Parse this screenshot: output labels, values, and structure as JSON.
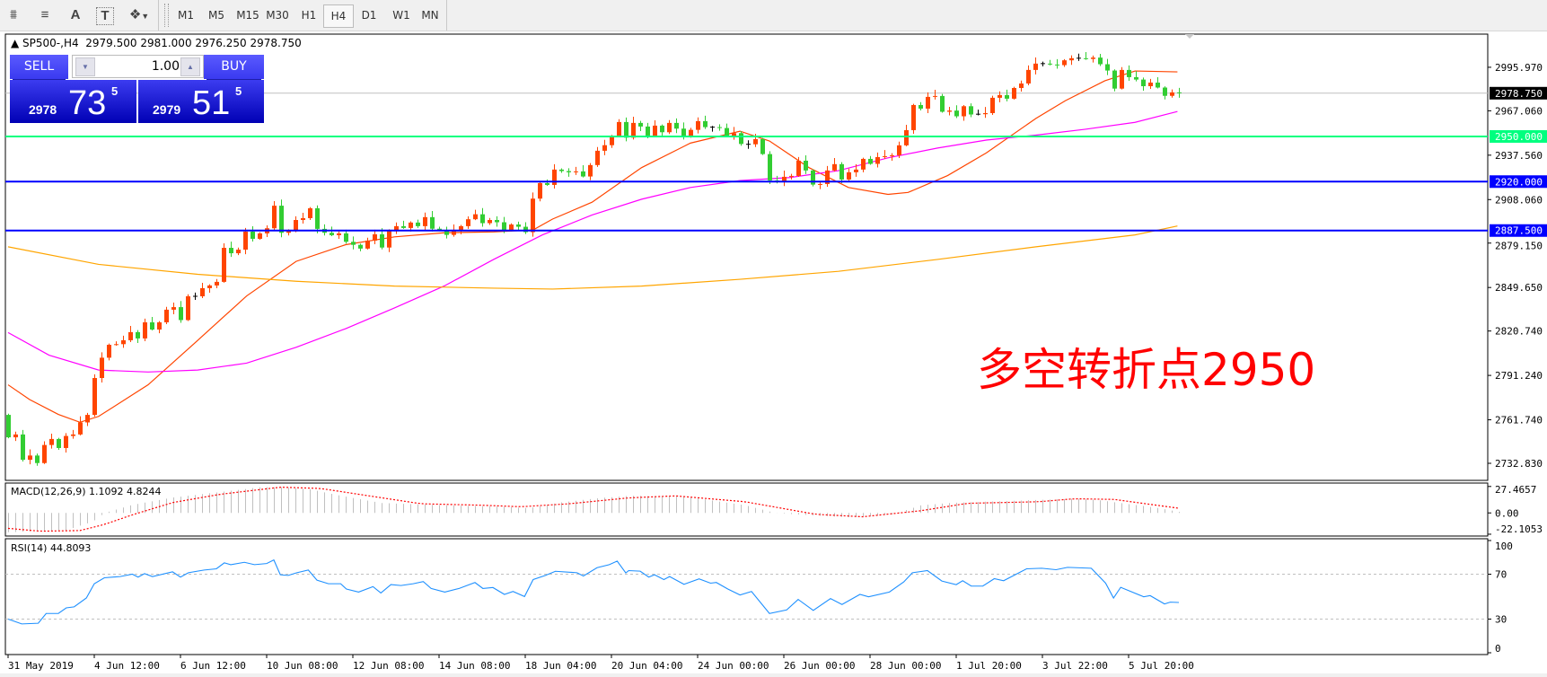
{
  "toolbar": {
    "icons": [
      "expert-icon",
      "fibonacci-icon",
      "text-icon",
      "text-label-icon",
      "arrows-icon"
    ],
    "icon_glyphs": [
      "⩩",
      "≡",
      "A",
      "T",
      "❖"
    ],
    "timeframes": [
      "M1",
      "M5",
      "M15",
      "M30",
      "H1",
      "H4",
      "D1",
      "W1",
      "MN"
    ],
    "selected_timeframe": "H4"
  },
  "chart_header": {
    "symbol": "SP500-,H4",
    "ohlc": "2979.500 2981.000 2976.250 2978.750"
  },
  "one_click": {
    "sell_label": "SELL",
    "buy_label": "BUY",
    "volume": "1.00",
    "sell_price": {
      "prefix": "2978",
      "big": "73",
      "sup": "5"
    },
    "buy_price": {
      "prefix": "2979",
      "big": "51",
      "sup": "5"
    }
  },
  "annotation": {
    "text": "多空转折点2950",
    "color": "#ff0000"
  },
  "colors": {
    "bull": "#ff4500",
    "bear": "#32cd32",
    "doji": "#000000",
    "ma_fast": "#ff4500",
    "ma_mid": "#ff00ff",
    "ma_slow": "#ffa500",
    "level_green": "#00ff7f",
    "level_blue": "#0000ff",
    "bid_line": "#c0c0c0",
    "macd_hist": "#c0c0c0",
    "macd_signal": "#ff0000",
    "rsi": "#1e90ff"
  },
  "chart_data": {
    "type": "candlestick",
    "symbol": "SP500-",
    "timeframe": "H4",
    "ylim": [
      2721.5,
      3018.0
    ],
    "y_ticks": [
      "2995.970",
      "2967.060",
      "2937.560",
      "2908.060",
      "2879.150",
      "2849.650",
      "2820.740",
      "2791.240",
      "2761.740",
      "2732.830"
    ],
    "first_open": 2765,
    "closes": [
      2750.1,
      2752,
      2735.2,
      2738,
      2733,
      2745,
      2749,
      2743,
      2751,
      2752,
      2760,
      2765,
      2789.5,
      2803,
      2811.6,
      2812,
      2814.6,
      2820,
      2815.8,
      2826.5,
      2821.7,
      2826.5,
      2834.9,
      2836.6,
      2828,
      2843.8,
      2843.8,
      2849.2,
      2851,
      2853.4,
      2876,
      2872.4,
      2874.8,
      2886.8,
      2882,
      2885.6,
      2889,
      2904,
      2886,
      2887,
      2894.5,
      2895.7,
      2902.3,
      2888.6,
      2886,
      2884.4,
      2885.6,
      2880,
      2878,
      2875.5,
      2880.8,
      2885,
      2876.2,
      2887,
      2890.4,
      2889.2,
      2892.8,
      2890.4,
      2896.4,
      2888.7,
      2887.6,
      2884.6,
      2888,
      2890.4,
      2895,
      2898.3,
      2892.4,
      2894.5,
      2893,
      2887.6,
      2891.5,
      2890,
      2886.4,
      2908.7,
      2919,
      2917.8,
      2928,
      2927,
      2926.2,
      2926.8,
      2923.4,
      2931,
      2940.5,
      2944.2,
      2950.2,
      2959.6,
      2949.2,
      2959,
      2956.6,
      2950.6,
      2957.2,
      2952.8,
      2959,
      2955.2,
      2949.8,
      2954.4,
      2960.2,
      2956.2,
      2956.2,
      2955.6,
      2950.2,
      2952.2,
      2945,
      2944.8,
      2948.2,
      2938.3,
      2920.8,
      2920,
      2923.2,
      2923.8,
      2933.9,
      2927.4,
      2918,
      2918.4,
      2927.4,
      2931.6,
      2921.4,
      2926.2,
      2928,
      2935.1,
      2931.8,
      2936.3,
      2936.9,
      2937.5,
      2944.1,
      2954.2,
      2970.9,
      2968.5,
      2976.3,
      2976.9,
      2966.4,
      2967.2,
      2963.4,
      2970.1,
      2964.6,
      2964.8,
      2965.5,
      2975.7,
      2977.5,
      2975.1,
      2982.2,
      2985.2,
      2994.2,
      2998.4,
      2998.4,
      2997.8,
      2997.4,
      3000.6,
      3002,
      3002,
      3001.5,
      3002.4,
      2998,
      2993.8,
      2981.8,
      2994.2,
      2989.4,
      2987.8,
      2983.4,
      2985.8,
      2982.5,
      2977,
      2979.3,
      2978.75
    ],
    "moving_averages": [
      {
        "role": "fast",
        "points": [
          [
            0,
            2785
          ],
          [
            3,
            2775.2
          ],
          [
            7,
            2765.3
          ],
          [
            10,
            2760.1
          ],
          [
            12.6,
            2764
          ],
          [
            19.5,
            2785
          ],
          [
            26.4,
            2814.5
          ],
          [
            33.2,
            2844
          ],
          [
            40.1,
            2867
          ],
          [
            47,
            2878.1
          ],
          [
            53.8,
            2883.3
          ],
          [
            60.7,
            2886
          ],
          [
            67.6,
            2886.6
          ],
          [
            73.1,
            2887.9
          ],
          [
            75.8,
            2895.1
          ],
          [
            81.3,
            2906.3
          ],
          [
            88.2,
            2929.3
          ],
          [
            95,
            2945.6
          ],
          [
            101.9,
            2953.5
          ],
          [
            106,
            2947
          ],
          [
            111.5,
            2929.3
          ],
          [
            117,
            2916.1
          ],
          [
            122.5,
            2911.5
          ],
          [
            125.3,
            2912.8
          ],
          [
            130.8,
            2924
          ],
          [
            136.2,
            2939.1
          ],
          [
            143.1,
            2962
          ],
          [
            147.2,
            2973.8
          ],
          [
            152.7,
            2987
          ],
          [
            156.9,
            2993.5
          ],
          [
            162.8,
            2992.9
          ]
        ]
      },
      {
        "role": "mid",
        "points": [
          [
            0,
            2819.7
          ],
          [
            5.7,
            2804.7
          ],
          [
            12.6,
            2794.8
          ],
          [
            19.5,
            2793.5
          ],
          [
            26.4,
            2794.8
          ],
          [
            33.2,
            2799.4
          ],
          [
            40.1,
            2809.9
          ],
          [
            47,
            2822.3
          ],
          [
            53.8,
            2836.1
          ],
          [
            60.7,
            2850.6
          ],
          [
            67.6,
            2868.3
          ],
          [
            74.4,
            2884.6
          ],
          [
            81.3,
            2897.8
          ],
          [
            88.2,
            2908.3
          ],
          [
            95,
            2916.1
          ],
          [
            101.9,
            2920.7
          ],
          [
            108.8,
            2922.7
          ],
          [
            115.6,
            2927.3
          ],
          [
            122.5,
            2935.8
          ],
          [
            129.4,
            2942.3
          ],
          [
            136.2,
            2947.6
          ],
          [
            143.1,
            2950.9
          ],
          [
            150,
            2954.8
          ],
          [
            156.9,
            2959.4
          ],
          [
            162.8,
            2966.6
          ]
        ]
      },
      {
        "role": "slow",
        "points": [
          [
            0,
            2876.7
          ],
          [
            12.6,
            2865
          ],
          [
            26.4,
            2858.4
          ],
          [
            40.1,
            2853.8
          ],
          [
            53.8,
            2850.6
          ],
          [
            67.6,
            2849.2
          ],
          [
            75.8,
            2848.6
          ],
          [
            88.2,
            2850.6
          ],
          [
            101.9,
            2855.1
          ],
          [
            115.6,
            2860.4
          ],
          [
            129.4,
            2868.3
          ],
          [
            143.1,
            2876.7
          ],
          [
            156.9,
            2884.6
          ],
          [
            162.8,
            2890.5
          ]
        ]
      }
    ],
    "levels": [
      {
        "price": 2950.0,
        "label": "2950.000",
        "color": "#00ff7f"
      },
      {
        "price": 2920.0,
        "label": "2920.000",
        "color": "#0000ff"
      },
      {
        "price": 2887.5,
        "label": "2887.500",
        "color": "#0000ff"
      }
    ],
    "bid": {
      "price": 2978.75,
      "label": "2978.750"
    },
    "time_labels": [
      {
        "bar": 0,
        "label": "31 May 2019"
      },
      {
        "bar": 12,
        "label": "4 Jun 12:00"
      },
      {
        "bar": 24,
        "label": "6 Jun 12:00"
      },
      {
        "bar": 36,
        "label": "10 Jun 08:00"
      },
      {
        "bar": 48,
        "label": "12 Jun 08:00"
      },
      {
        "bar": 60,
        "label": "14 Jun 08:00"
      },
      {
        "bar": 72,
        "label": "18 Jun 04:00"
      },
      {
        "bar": 84,
        "label": "20 Jun 04:00"
      },
      {
        "bar": 96,
        "label": "24 Jun 00:00"
      },
      {
        "bar": 108,
        "label": "26 Jun 00:00"
      },
      {
        "bar": 120,
        "label": "28 Jun 00:00"
      },
      {
        "bar": 132,
        "label": "1 Jul 20:00"
      },
      {
        "bar": 144,
        "label": "3 Jul 22:00"
      },
      {
        "bar": 156,
        "label": "5 Jul 20:00"
      }
    ],
    "macd": {
      "label": "MACD(12,26,9) 1.1092 4.8244",
      "ticks": [
        "27.4657",
        "0.00",
        "-22.1053"
      ],
      "tick_values": [
        27.4657,
        0,
        -22.1053
      ],
      "ylim": [
        -24,
        31
      ],
      "main_points": [
        [
          0,
          -20
        ],
        [
          8,
          -18
        ],
        [
          11.75,
          -9
        ],
        [
          13.4,
          0
        ],
        [
          17.25,
          8.3
        ],
        [
          22.9,
          16
        ],
        [
          29.5,
          21.7
        ],
        [
          35.1,
          26.7
        ],
        [
          37.9,
          26.7
        ],
        [
          41.9,
          24.6
        ],
        [
          46.4,
          17.7
        ],
        [
          51.9,
          10.3
        ],
        [
          60.25,
          8
        ],
        [
          68.6,
          6.4
        ],
        [
          72.5,
          5
        ],
        [
          77,
          11
        ],
        [
          82.6,
          15.6
        ],
        [
          86.4,
          17.7
        ],
        [
          88,
          17.7
        ],
        [
          94.5,
          16.6
        ],
        [
          102.6,
          8
        ],
        [
          106.75,
          0
        ],
        [
          110.9,
          -2.1
        ],
        [
          117.4,
          -4.6
        ],
        [
          123.1,
          -1.5
        ],
        [
          127.1,
          8
        ],
        [
          131.25,
          10.4
        ],
        [
          143.5,
          13.5
        ],
        [
          148.4,
          14.7
        ],
        [
          151.6,
          13.5
        ],
        [
          155.6,
          9.5
        ],
        [
          159.75,
          5.5
        ],
        [
          163,
          1.1092
        ]
      ],
      "signal_points": [
        [
          0,
          -16
        ],
        [
          4.5,
          -19
        ],
        [
          10,
          -18.3
        ],
        [
          13.4,
          -12
        ],
        [
          17.25,
          -2.1
        ],
        [
          22.9,
          10.7
        ],
        [
          29.5,
          19.3
        ],
        [
          37.9,
          26.7
        ],
        [
          43.5,
          25.4
        ],
        [
          50.25,
          17.7
        ],
        [
          57.5,
          9.5
        ],
        [
          65.9,
          8
        ],
        [
          71.4,
          6.4
        ],
        [
          78.1,
          9.5
        ],
        [
          86.4,
          15.6
        ],
        [
          92.9,
          17.7
        ],
        [
          102.6,
          11.6
        ],
        [
          112.5,
          -1.5
        ],
        [
          119,
          -4
        ],
        [
          127.1,
          2.3
        ],
        [
          133.6,
          10
        ],
        [
          143.5,
          11.6
        ],
        [
          148.4,
          14.7
        ],
        [
          154,
          14
        ],
        [
          163,
          4.8244
        ]
      ]
    },
    "rsi": {
      "label": "RSI(14) 44.8093",
      "ticks": [
        "100",
        "70",
        "30",
        "0"
      ],
      "tick_values": [
        100,
        70,
        30,
        0
      ],
      "levels": [
        70,
        30
      ],
      "ylim": [
        0,
        100
      ],
      "points": [
        [
          0,
          30
        ],
        [
          1.9,
          25.7
        ],
        [
          4.2,
          26.3
        ],
        [
          5.3,
          35
        ],
        [
          7,
          35
        ],
        [
          8.1,
          40
        ],
        [
          9.2,
          40.9
        ],
        [
          10.9,
          48.8
        ],
        [
          12,
          61.5
        ],
        [
          13.4,
          66.8
        ],
        [
          15.6,
          67.9
        ],
        [
          17.3,
          70
        ],
        [
          18.1,
          67.4
        ],
        [
          19,
          70.5
        ],
        [
          20.1,
          67.9
        ],
        [
          22.9,
          72.1
        ],
        [
          24,
          67.4
        ],
        [
          25.1,
          71.3
        ],
        [
          27.3,
          73.7
        ],
        [
          29,
          74.8
        ],
        [
          30.1,
          80.1
        ],
        [
          31,
          78.5
        ],
        [
          32.9,
          80.6
        ],
        [
          34.3,
          78.5
        ],
        [
          36,
          79.5
        ],
        [
          37,
          82.7
        ],
        [
          37.9,
          69.5
        ],
        [
          39,
          68.9
        ],
        [
          40.2,
          71.3
        ],
        [
          41.8,
          73.7
        ],
        [
          43,
          64.7
        ],
        [
          44.6,
          61.5
        ],
        [
          46.3,
          61.5
        ],
        [
          47.1,
          56.8
        ],
        [
          48.8,
          54.1
        ],
        [
          50.8,
          58.9
        ],
        [
          51.9,
          53.3
        ],
        [
          53.3,
          60.7
        ],
        [
          54.7,
          59.9
        ],
        [
          56.4,
          61.5
        ],
        [
          57.8,
          63.4
        ],
        [
          58.9,
          57.3
        ],
        [
          60.8,
          54.1
        ],
        [
          62.8,
          57.3
        ],
        [
          65,
          62.6
        ],
        [
          66.1,
          57.3
        ],
        [
          67.5,
          58.1
        ],
        [
          69.1,
          52
        ],
        [
          70.3,
          54.6
        ],
        [
          71.9,
          50.1
        ],
        [
          73.1,
          65.2
        ],
        [
          74.8,
          68.9
        ],
        [
          76.2,
          72.6
        ],
        [
          79.2,
          71.3
        ],
        [
          80.1,
          68.4
        ],
        [
          82,
          75.8
        ],
        [
          83.7,
          78.5
        ],
        [
          84.8,
          81.7
        ],
        [
          86,
          71.1
        ],
        [
          86.4,
          73.2
        ],
        [
          88,
          72.7
        ],
        [
          89.2,
          67.4
        ],
        [
          90,
          69.5
        ],
        [
          91.3,
          65.2
        ],
        [
          92.1,
          67.9
        ],
        [
          94.1,
          61
        ],
        [
          96.2,
          65.8
        ],
        [
          97.8,
          62
        ],
        [
          98.6,
          62.6
        ],
        [
          100.2,
          56.8
        ],
        [
          101.9,
          51.5
        ],
        [
          103.5,
          54.6
        ],
        [
          106,
          35
        ],
        [
          108.4,
          38.2
        ],
        [
          110,
          47.5
        ],
        [
          112.1,
          37.7
        ],
        [
          114.5,
          48.3
        ],
        [
          116.1,
          43
        ],
        [
          118.6,
          52
        ],
        [
          119.8,
          49.9
        ],
        [
          122.7,
          54.1
        ],
        [
          124.7,
          63.1
        ],
        [
          125.9,
          71.3
        ],
        [
          128,
          73.2
        ],
        [
          130,
          63.9
        ],
        [
          132,
          60.7
        ],
        [
          132.9,
          64.2
        ],
        [
          134.1,
          59.4
        ],
        [
          135.7,
          59.4
        ],
        [
          137.3,
          66
        ],
        [
          138.6,
          64.2
        ],
        [
          141.8,
          74.8
        ],
        [
          143.9,
          75.3
        ],
        [
          145.9,
          74
        ],
        [
          147.5,
          76.1
        ],
        [
          150.8,
          75.3
        ],
        [
          152.8,
          62
        ],
        [
          153.9,
          48.8
        ],
        [
          154.9,
          58.3
        ],
        [
          158.1,
          49.9
        ],
        [
          159,
          50.9
        ],
        [
          161,
          43.5
        ],
        [
          161.8,
          45.1
        ],
        [
          163,
          44.8093
        ]
      ]
    }
  }
}
